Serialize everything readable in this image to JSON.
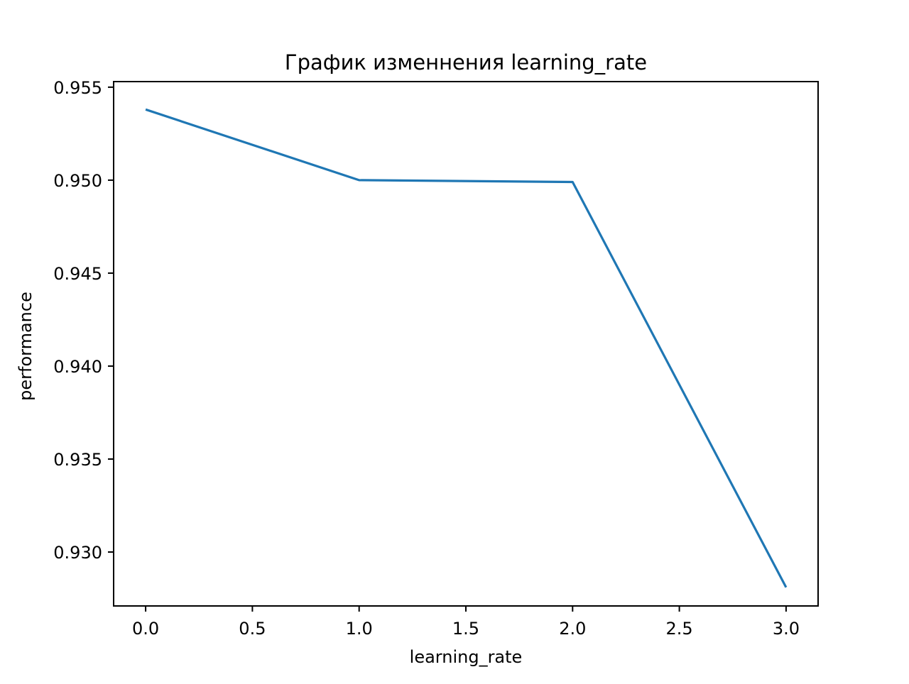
{
  "chart_data": {
    "type": "line",
    "title": "График изменнения learning_rate",
    "xlabel": "learning_rate",
    "ylabel": "performance",
    "x": [
      0.0,
      1.0,
      2.0,
      3.0
    ],
    "series": [
      {
        "values": [
          0.9538,
          0.95,
          0.9499,
          0.9281
        ],
        "color": "#1f77b4"
      }
    ],
    "xlim": [
      -0.15,
      3.15
    ],
    "ylim": [
      0.9271,
      0.9553
    ],
    "xticks": [
      0.0,
      0.5,
      1.0,
      1.5,
      2.0,
      2.5,
      3.0
    ],
    "xtick_labels": [
      "0.0",
      "0.5",
      "1.0",
      "1.5",
      "2.0",
      "2.5",
      "3.0"
    ],
    "yticks": [
      0.93,
      0.935,
      0.94,
      0.945,
      0.95,
      0.955
    ],
    "ytick_labels": [
      "0.930",
      "0.935",
      "0.940",
      "0.945",
      "0.950",
      "0.955"
    ],
    "grid": false,
    "legend": false
  }
}
